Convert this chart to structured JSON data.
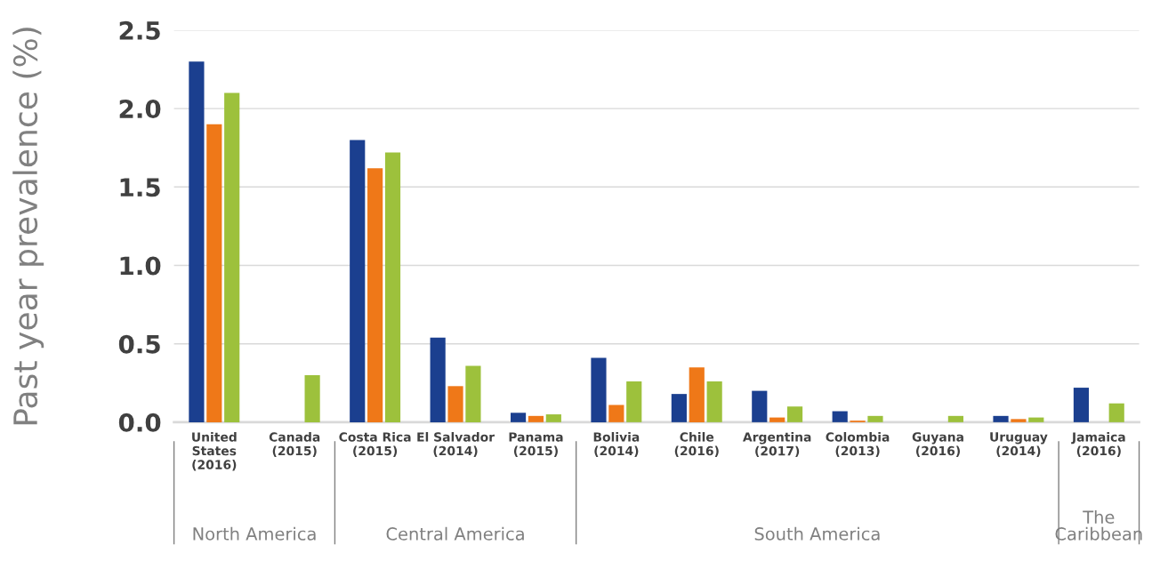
{
  "chart_data": {
    "type": "bar",
    "ylabel": "Past year prevalence (%)",
    "categories": [
      "United\nStates\n(2016)",
      "Canada\n(2015)",
      "Costa Rica\n(2015)",
      "El Salvador\n(2014)",
      "Panama\n(2015)",
      "Bolivia\n(2014)",
      "Chile\n(2016)",
      "Argentina\n(2017)",
      "Colombia\n(2013)",
      "Guyana\n(2016)",
      "Uruguay\n(2014)",
      "Jamaica\n(2016)"
    ],
    "series": [
      {
        "color": "#1b3f8f",
        "values": [
          2.3,
          null,
          1.8,
          0.54,
          0.06,
          0.41,
          0.18,
          0.2,
          0.07,
          null,
          0.04,
          0.22
        ]
      },
      {
        "color": "#ef7818",
        "values": [
          1.9,
          null,
          1.62,
          0.23,
          0.04,
          0.11,
          0.35,
          0.03,
          0.01,
          null,
          0.02,
          null
        ]
      },
      {
        "color": "#9dc13c",
        "values": [
          2.1,
          0.3,
          1.72,
          0.36,
          0.05,
          0.26,
          0.26,
          0.1,
          0.04,
          0.04,
          0.03,
          0.12
        ]
      }
    ],
    "ylim": [
      0,
      2.5
    ],
    "yticks": [
      {
        "value": 0,
        "label": "0.0"
      },
      {
        "value": 0.5,
        "label": "0.5"
      },
      {
        "value": 1,
        "label": "1.0"
      },
      {
        "value": 1.5,
        "label": "1.5"
      },
      {
        "value": 2,
        "label": "2.0"
      },
      {
        "value": 2.5,
        "label": "2.5"
      }
    ],
    "grid": "y",
    "legend": false,
    "annotations": [
      "North America",
      "Central America",
      "South America",
      "The\nCaribbean"
    ]
  }
}
